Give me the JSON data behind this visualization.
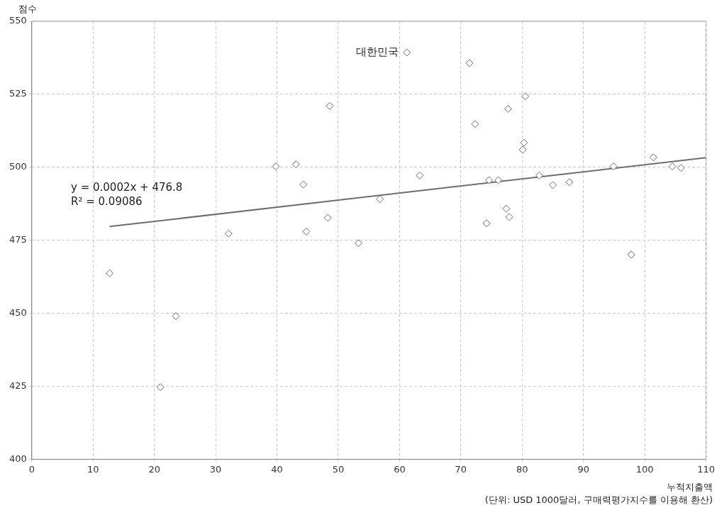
{
  "chart_data": {
    "type": "scatter",
    "xlabel": "누적지출액",
    "ylabel": "점수",
    "series": [
      {
        "type": "scatter",
        "color": "#6e6e6e",
        "marker": "diamond",
        "x": [
          12.7,
          21.0,
          23.5,
          32.1,
          39.8,
          43.1,
          44.3,
          44.8,
          48.3,
          48.6,
          53.3,
          56.8,
          61.2,
          63.3,
          71.4,
          72.3,
          74.2,
          74.6,
          76.1,
          77.4,
          77.7,
          77.9,
          80.1,
          80.3,
          80.5,
          82.8,
          85.0,
          87.7,
          94.9,
          97.8,
          101.4,
          104.5,
          105.9
        ],
        "values": [
          463.7,
          424.7,
          449.0,
          477.3,
          500.3,
          501.0,
          494.1,
          478.0,
          482.7,
          521.0,
          474.0,
          489.1,
          539.3,
          497.2,
          535.7,
          514.8,
          480.8,
          495.6,
          495.6,
          485.8,
          520.0,
          483.0,
          506.0,
          508.4,
          524.3,
          497.2,
          493.9,
          494.9,
          500.3,
          470.1,
          503.4,
          500.3,
          499.8
        ]
      },
      {
        "type": "line",
        "color": "#6e6e6e",
        "marker": "none",
        "x": [
          12.7,
          110
        ],
        "values": [
          479.7,
          503.3
        ]
      }
    ],
    "xlim": [
      0,
      110
    ],
    "xticks": [
      0,
      10,
      20,
      30,
      40,
      50,
      60,
      70,
      80,
      90,
      100,
      110
    ],
    "ylim": [
      400,
      550
    ],
    "yticks": [
      400,
      425,
      450,
      475,
      500,
      525,
      550
    ],
    "grid": true,
    "legend": false,
    "line_style": "solid",
    "annotations": [
      {
        "text": "대한민국",
        "x": 61.2,
        "y": 539.3
      },
      "y = 0.0002x + 476.8",
      "R² = 0.09086",
      "(단위: USD 1000달러, 구매력평가지수를 이용해 환산)"
    ]
  }
}
